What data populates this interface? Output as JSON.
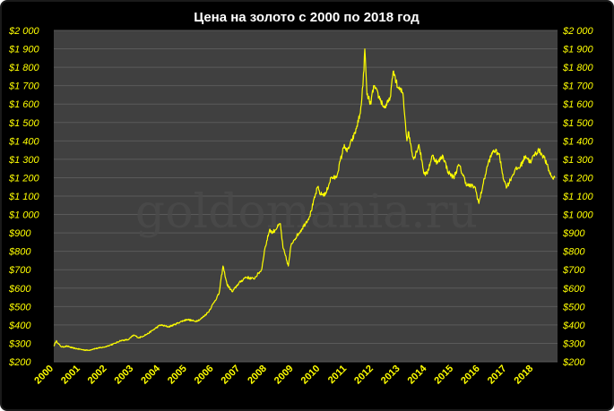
{
  "chart_data": {
    "type": "line",
    "title": "Цена на золото с 2000 по 2018 год",
    "watermark": "goldomania.ru",
    "xlabel": "",
    "ylabel": "",
    "xlim": [
      2000,
      2018.9
    ],
    "ylim": [
      200,
      2000
    ],
    "y_ticks": [
      "$200",
      "$300",
      "$400",
      "$500",
      "$600",
      "$700",
      "$800",
      "$900",
      "$1 000",
      "$1 100",
      "$1 200",
      "$1 300",
      "$1 400",
      "$1 500",
      "$1 600",
      "$1 700",
      "$1 800",
      "$1 900",
      "$2 000"
    ],
    "y_tick_values": [
      200,
      300,
      400,
      500,
      600,
      700,
      800,
      900,
      1000,
      1100,
      1200,
      1300,
      1400,
      1500,
      1600,
      1700,
      1800,
      1900,
      2000
    ],
    "x_ticks": [
      "2000",
      "2001",
      "2002",
      "2003",
      "2004",
      "2005",
      "2006",
      "2007",
      "2008",
      "2009",
      "2010",
      "2011",
      "2012",
      "2013",
      "2014",
      "2015",
      "2016",
      "2017",
      "2018"
    ],
    "x_tick_values": [
      2000,
      2001,
      2002,
      2003,
      2004,
      2005,
      2006,
      2007,
      2008,
      2009,
      2010,
      2011,
      2012,
      2013,
      2014,
      2015,
      2016,
      2017,
      2018
    ],
    "grid": true,
    "colors": {
      "background": "#000000",
      "plot_area": "#404040",
      "grid": "#5a5a5a",
      "line": "#ffff00",
      "tick_text": "#ffff00",
      "title_text": "#ffffff"
    },
    "series": [
      {
        "x": [
          2000.0,
          2000.1,
          2000.15,
          2000.3,
          2000.5,
          2000.7,
          2000.9,
          2001.1,
          2001.3,
          2001.5,
          2001.7,
          2001.9,
          2002.0,
          2002.3,
          2002.5,
          2002.8,
          2003.0,
          2003.2,
          2003.5,
          2003.8,
          2004.0,
          2004.3,
          2004.5,
          2004.8,
          2005.0,
          2005.3,
          2005.5,
          2005.8,
          2006.0,
          2006.2,
          2006.35,
          2006.5,
          2006.7,
          2006.9,
          2007.2,
          2007.5,
          2007.8,
          2007.9,
          2008.1,
          2008.2,
          2008.5,
          2008.6,
          2008.8,
          2008.9,
          2009.0,
          2009.3,
          2009.6,
          2009.9,
          2010.0,
          2010.2,
          2010.4,
          2010.6,
          2010.9,
          2011.0,
          2011.3,
          2011.5,
          2011.6,
          2011.67,
          2011.75,
          2011.9,
          2012.0,
          2012.2,
          2012.4,
          2012.6,
          2012.75,
          2012.9,
          2013.1,
          2013.25,
          2013.3,
          2013.5,
          2013.7,
          2013.9,
          2014.0,
          2014.2,
          2014.4,
          2014.6,
          2014.8,
          2015.0,
          2015.2,
          2015.5,
          2015.8,
          2015.95,
          2016.1,
          2016.3,
          2016.5,
          2016.7,
          2016.9,
          2017.0,
          2017.3,
          2017.5,
          2017.7,
          2017.9,
          2018.0,
          2018.2,
          2018.4,
          2018.6,
          2018.7,
          2018.8
        ],
        "y": [
          285,
          315,
          300,
          280,
          285,
          275,
          270,
          265,
          262,
          270,
          275,
          280,
          285,
          300,
          315,
          320,
          345,
          330,
          350,
          380,
          400,
          390,
          400,
          420,
          430,
          420,
          430,
          470,
          520,
          570,
          720,
          620,
          580,
          620,
          660,
          650,
          700,
          800,
          920,
          900,
          950,
          820,
          720,
          830,
          860,
          920,
          990,
          1150,
          1110,
          1110,
          1200,
          1200,
          1380,
          1340,
          1440,
          1550,
          1700,
          1900,
          1650,
          1600,
          1700,
          1640,
          1580,
          1620,
          1780,
          1690,
          1660,
          1400,
          1450,
          1300,
          1380,
          1220,
          1220,
          1320,
          1280,
          1320,
          1230,
          1200,
          1270,
          1160,
          1150,
          1060,
          1160,
          1280,
          1350,
          1330,
          1180,
          1150,
          1240,
          1260,
          1320,
          1280,
          1320,
          1350,
          1310,
          1230,
          1200,
          1200
        ]
      }
    ]
  }
}
